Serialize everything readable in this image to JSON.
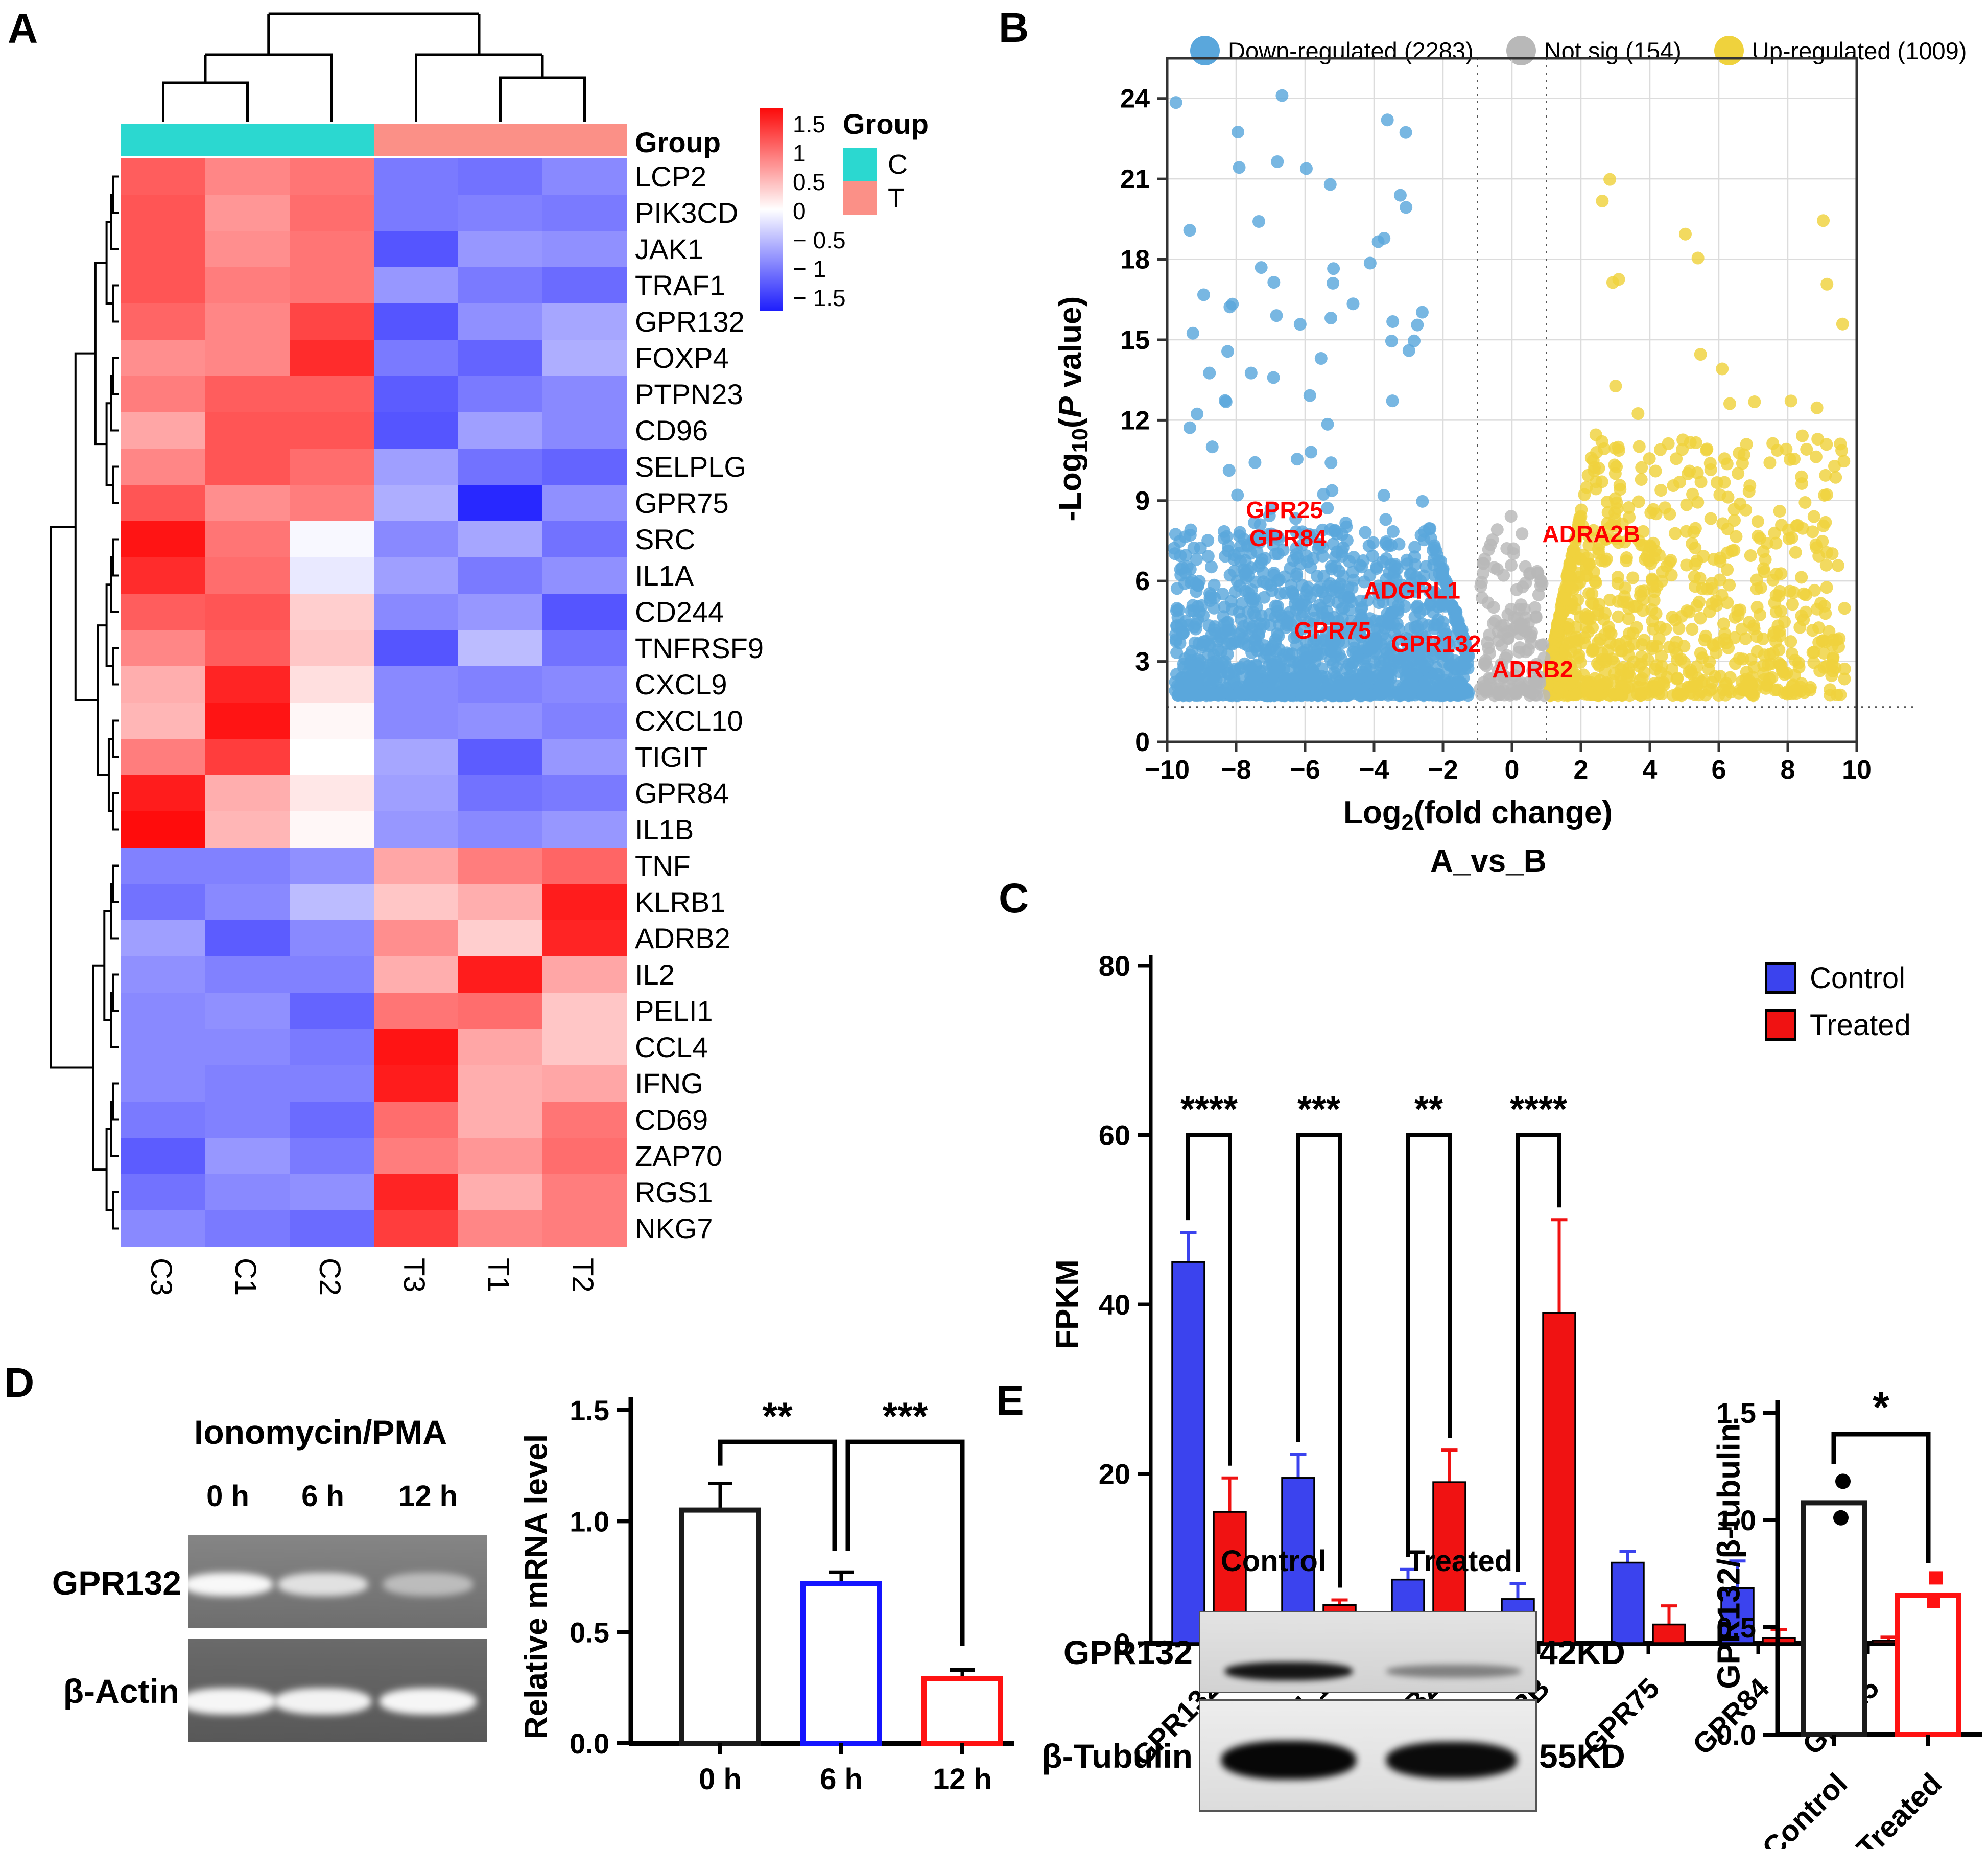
{
  "panels": {
    "A": {
      "label": "A",
      "annotation_title": "Group",
      "legend": {
        "title": "Group",
        "items": [
          {
            "label": "C",
            "color": "#2BD8D0"
          },
          {
            "label": "T",
            "color": "#FB9087"
          }
        ]
      },
      "colorbar_ticks": [
        "1.5",
        "1",
        "0.5",
        "0",
        "-0.5",
        "-1",
        "-1.5"
      ]
    },
    "B": {
      "label": "B",
      "subtitle": "A_vs_B",
      "xlabel": {
        "pre": "Log",
        "sub": "2",
        "rest": "(fold change)"
      },
      "ylabel": {
        "pre": "-Log",
        "sub": "10",
        "open": "(",
        "p": "P",
        "rest": " value)"
      },
      "legend": [
        {
          "label": "Down-regulated (2283)",
          "color": "#5AA7DC"
        },
        {
          "label": "Not sig (154)",
          "color": "#B8B8B8"
        },
        {
          "label": "Up-regulated (1009)",
          "color": "#EFD23D"
        }
      ]
    },
    "C": {
      "label": "C"
    },
    "D": {
      "label": "D",
      "gel": {
        "title": "Ionomycin/PMA",
        "lanes": [
          "0 h",
          "6 h",
          "12 h"
        ],
        "rows": [
          {
            "label": "GPR132",
            "band_intensities": [
              0.95,
              0.78,
              0.5
            ]
          },
          {
            "label": "β-Actin",
            "band_intensities": [
              0.95,
              0.93,
              0.95
            ]
          }
        ]
      }
    },
    "E": {
      "label": "E",
      "blot": {
        "lanes": [
          "Control",
          "Treated"
        ],
        "rows": [
          {
            "label": "GPR132",
            "size": "42KD",
            "band_intensities": [
              0.9,
              0.4
            ]
          },
          {
            "label": "β-Tubulin",
            "size": "55KD",
            "band_intensities": [
              0.97,
              0.95
            ]
          }
        ]
      }
    }
  },
  "chart_data": [
    {
      "type": "heatmap",
      "panel": "A",
      "columns": [
        "C3",
        "C1",
        "C2",
        "T3",
        "T1",
        "T2"
      ],
      "column_groups": [
        "C",
        "C",
        "C",
        "T",
        "T",
        "T"
      ],
      "group_colors": {
        "C": "#2BD8D0",
        "T": "#FB9087"
      },
      "zlim": [
        -1.5,
        1.5
      ],
      "colorbar_ticks": [
        1.5,
        1,
        0.5,
        0,
        -0.5,
        -1,
        -1.5
      ],
      "rows": [
        "LCP2",
        "PIK3CD",
        "JAK1",
        "TRAF1",
        "GPR132",
        "FOXP4",
        "PTPN23",
        "CD96",
        "SELPLG",
        "GPR75",
        "SRC",
        "IL1A",
        "CD244",
        "TNFRSF9",
        "CXCL9",
        "CXCL10",
        "TIGIT",
        "GPR84",
        "IL1B",
        "TNF",
        "KLRB1",
        "ADRB2",
        "IL2",
        "PELI1",
        "CCL4",
        "IFNG",
        "CD69",
        "ZAP70",
        "RGS1",
        "NKG7"
      ],
      "values": [
        [
          1.0,
          0.75,
          0.85,
          -0.9,
          -0.95,
          -0.8
        ],
        [
          1.05,
          0.65,
          0.9,
          -0.9,
          -0.85,
          -0.9
        ],
        [
          1.05,
          0.7,
          0.85,
          -1.15,
          -0.7,
          -0.75
        ],
        [
          1.05,
          0.8,
          0.85,
          -0.7,
          -0.9,
          -1.0
        ],
        [
          0.95,
          0.75,
          1.15,
          -1.15,
          -0.75,
          -0.6
        ],
        [
          0.7,
          0.75,
          1.3,
          -0.9,
          -1.05,
          -0.55
        ],
        [
          0.8,
          1.0,
          1.0,
          -1.1,
          -0.9,
          -0.8
        ],
        [
          0.55,
          1.05,
          1.05,
          -1.15,
          -0.65,
          -0.8
        ],
        [
          0.75,
          1.05,
          0.9,
          -0.65,
          -0.95,
          -1.05
        ],
        [
          1.05,
          0.7,
          0.8,
          -0.55,
          -1.45,
          -0.75
        ],
        [
          1.45,
          0.85,
          -0.05,
          -0.8,
          -0.6,
          -0.95
        ],
        [
          1.3,
          0.9,
          -0.15,
          -0.65,
          -0.9,
          -0.75
        ],
        [
          1.0,
          1.05,
          0.3,
          -0.8,
          -0.7,
          -1.15
        ],
        [
          0.75,
          1.0,
          0.35,
          -1.15,
          -0.45,
          -0.95
        ],
        [
          0.5,
          1.35,
          0.2,
          -0.8,
          -0.85,
          -0.8
        ],
        [
          0.45,
          1.45,
          0.05,
          -0.8,
          -0.75,
          -0.85
        ],
        [
          0.8,
          1.2,
          0.0,
          -0.6,
          -1.1,
          -0.7
        ],
        [
          1.4,
          0.5,
          0.15,
          -0.65,
          -0.95,
          -0.9
        ],
        [
          1.5,
          0.45,
          0.05,
          -0.7,
          -0.8,
          -0.7
        ],
        [
          -0.85,
          -0.85,
          -0.75,
          0.55,
          0.8,
          0.95
        ],
        [
          -0.95,
          -0.8,
          -0.45,
          0.35,
          0.5,
          1.4
        ],
        [
          -0.65,
          -1.1,
          -0.8,
          0.7,
          0.3,
          1.35
        ],
        [
          -0.75,
          -0.85,
          -0.85,
          0.5,
          1.4,
          0.55
        ],
        [
          -0.8,
          -0.75,
          -1.05,
          0.85,
          0.9,
          0.35
        ],
        [
          -0.8,
          -0.8,
          -0.9,
          1.45,
          0.55,
          0.35
        ],
        [
          -0.8,
          -0.85,
          -0.85,
          1.4,
          0.5,
          0.55
        ],
        [
          -0.9,
          -0.85,
          -1.0,
          0.9,
          0.5,
          0.85
        ],
        [
          -1.1,
          -0.7,
          -0.9,
          0.8,
          0.65,
          0.9
        ],
        [
          -0.95,
          -0.8,
          -0.75,
          1.35,
          0.5,
          0.8
        ],
        [
          -0.8,
          -0.9,
          -1.0,
          1.2,
          0.75,
          0.8
        ]
      ]
    },
    {
      "type": "scatter",
      "panel": "B",
      "title": "A_vs_B",
      "xlabel": "Log2(fold change)",
      "ylabel": "-Log10(P value)",
      "xlim": [
        -10,
        10
      ],
      "ylim": [
        0,
        25.5
      ],
      "xticks": [
        -10,
        -8,
        -6,
        -4,
        -2,
        0,
        2,
        4,
        6,
        8,
        10
      ],
      "yticks": [
        0,
        3,
        6,
        9,
        12,
        15,
        18,
        21,
        24
      ],
      "threshold_x": [
        -1,
        1
      ],
      "threshold_y": 1.3,
      "grid": true,
      "legend_position": "top",
      "groups": [
        {
          "name": "Down-regulated",
          "count": 2283,
          "color": "#5AA7DC"
        },
        {
          "name": "Not sig",
          "count": 154,
          "color": "#B8B8B8"
        },
        {
          "name": "Up-regulated",
          "count": 1009,
          "color": "#EFD23D"
        }
      ],
      "gene_labels": [
        {
          "gene": "GPR25",
          "x": -6.6,
          "y": 8.35
        },
        {
          "gene": "GPR84",
          "x": -6.5,
          "y": 7.3
        },
        {
          "gene": "ADGRL1",
          "x": -2.9,
          "y": 5.35
        },
        {
          "gene": "GPR75",
          "x": -5.2,
          "y": 3.85
        },
        {
          "gene": "GPR132",
          "x": -2.2,
          "y": 3.35
        },
        {
          "gene": "ADRB2",
          "x": 0.6,
          "y": 2.4
        },
        {
          "gene": "ADRA2B",
          "x": 2.3,
          "y": 7.45
        }
      ],
      "label_color": "#FF0000",
      "seed": 7,
      "render_counts": {
        "down": 1400,
        "notsig": 154,
        "up": 950
      }
    },
    {
      "type": "bar",
      "panel": "C",
      "ylabel": "FPKM",
      "ylim": [
        0,
        80
      ],
      "yticks": [
        0,
        20,
        40,
        60,
        80
      ],
      "categories": [
        "GPR132",
        "ADGRL1",
        "ADRB2",
        "ADRA2B",
        "GPR75",
        "GPR84",
        "GPR25"
      ],
      "series": [
        {
          "name": "Control",
          "color": "#3B43EE",
          "values": [
            45,
            19.5,
            7.5,
            5.2,
            9.5,
            6.5,
            4.8
          ],
          "errors": [
            3.5,
            2.8,
            1.2,
            1.8,
            1.3,
            3.2,
            1.3
          ]
        },
        {
          "name": "Treated",
          "color": "#F01212",
          "values": [
            15.5,
            4.5,
            19,
            39,
            2.2,
            0.6,
            0.3
          ],
          "errors": [
            4,
            0.6,
            3.8,
            11,
            2.2,
            1.0,
            0.4
          ]
        }
      ],
      "significance": [
        {
          "pair": 0,
          "label": "****"
        },
        {
          "pair": 1,
          "label": "***"
        },
        {
          "pair": 2,
          "label": "**"
        },
        {
          "pair": 3,
          "label": "****"
        }
      ],
      "bracket_y": 60,
      "legend_position": "top-right"
    },
    {
      "type": "bar",
      "panel": "D",
      "ylabel": "Relative mRNA level",
      "ylim": [
        0,
        1.5
      ],
      "yticks": [
        "0.0",
        "0.5",
        "1.0",
        "1.5"
      ],
      "categories": [
        "0 h",
        "6 h",
        "12 h"
      ],
      "values": [
        1.05,
        0.72,
        0.29
      ],
      "errors": [
        0.12,
        0.05,
        0.04
      ],
      "bar_colors": [
        "#1A1A1A",
        "#1414FF",
        "#FF1212"
      ],
      "significance": [
        {
          "between": [
            0,
            1
          ],
          "label": "**"
        },
        {
          "between": [
            1,
            2
          ],
          "label": "***"
        }
      ]
    },
    {
      "type": "bar-scatter",
      "panel": "E",
      "ylabel": "GPR132/β-tubulin",
      "ylim": [
        0,
        1.5
      ],
      "yticks": [
        "0.0",
        "0.5",
        "1.0",
        "1.5"
      ],
      "categories": [
        "Control",
        "Treated"
      ],
      "values": [
        1.08,
        0.65
      ],
      "points": [
        [
          1.18,
          1.01
        ],
        [
          0.73,
          0.62
        ]
      ],
      "bar_colors": [
        "#1A1A1A",
        "#FF1212"
      ],
      "significance": [
        {
          "between": [
            0,
            1
          ],
          "label": "*"
        }
      ]
    }
  ]
}
